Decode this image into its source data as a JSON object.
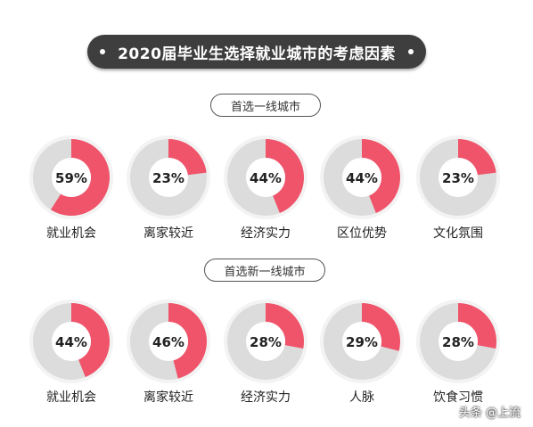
{
  "title": "2020届毕业生选择就业城市的考虑因素",
  "watermark": "头条 @上流",
  "colors": {
    "accent": "#f0546a",
    "track": "#dcdcdc",
    "inner": "#ffffff",
    "title_bg": "#3e3e3e"
  },
  "chart_data": [
    {
      "type": "pie",
      "title": "首选一线城市",
      "categories": [
        "就业机会",
        "离家较近",
        "经济实力",
        "区位优势",
        "文化氛围"
      ],
      "values": [
        59,
        23,
        44,
        44,
        23
      ],
      "value_labels": [
        "59%",
        "23%",
        "44%",
        "44%",
        "23%"
      ]
    },
    {
      "type": "pie",
      "title": "首选新一线城市",
      "categories": [
        "就业机会",
        "离家较近",
        "经济实力",
        "人脉",
        "饮食习惯"
      ],
      "values": [
        44,
        46,
        28,
        29,
        28
      ],
      "value_labels": [
        "44%",
        "46%",
        "28%",
        "29%",
        "28%"
      ]
    }
  ]
}
